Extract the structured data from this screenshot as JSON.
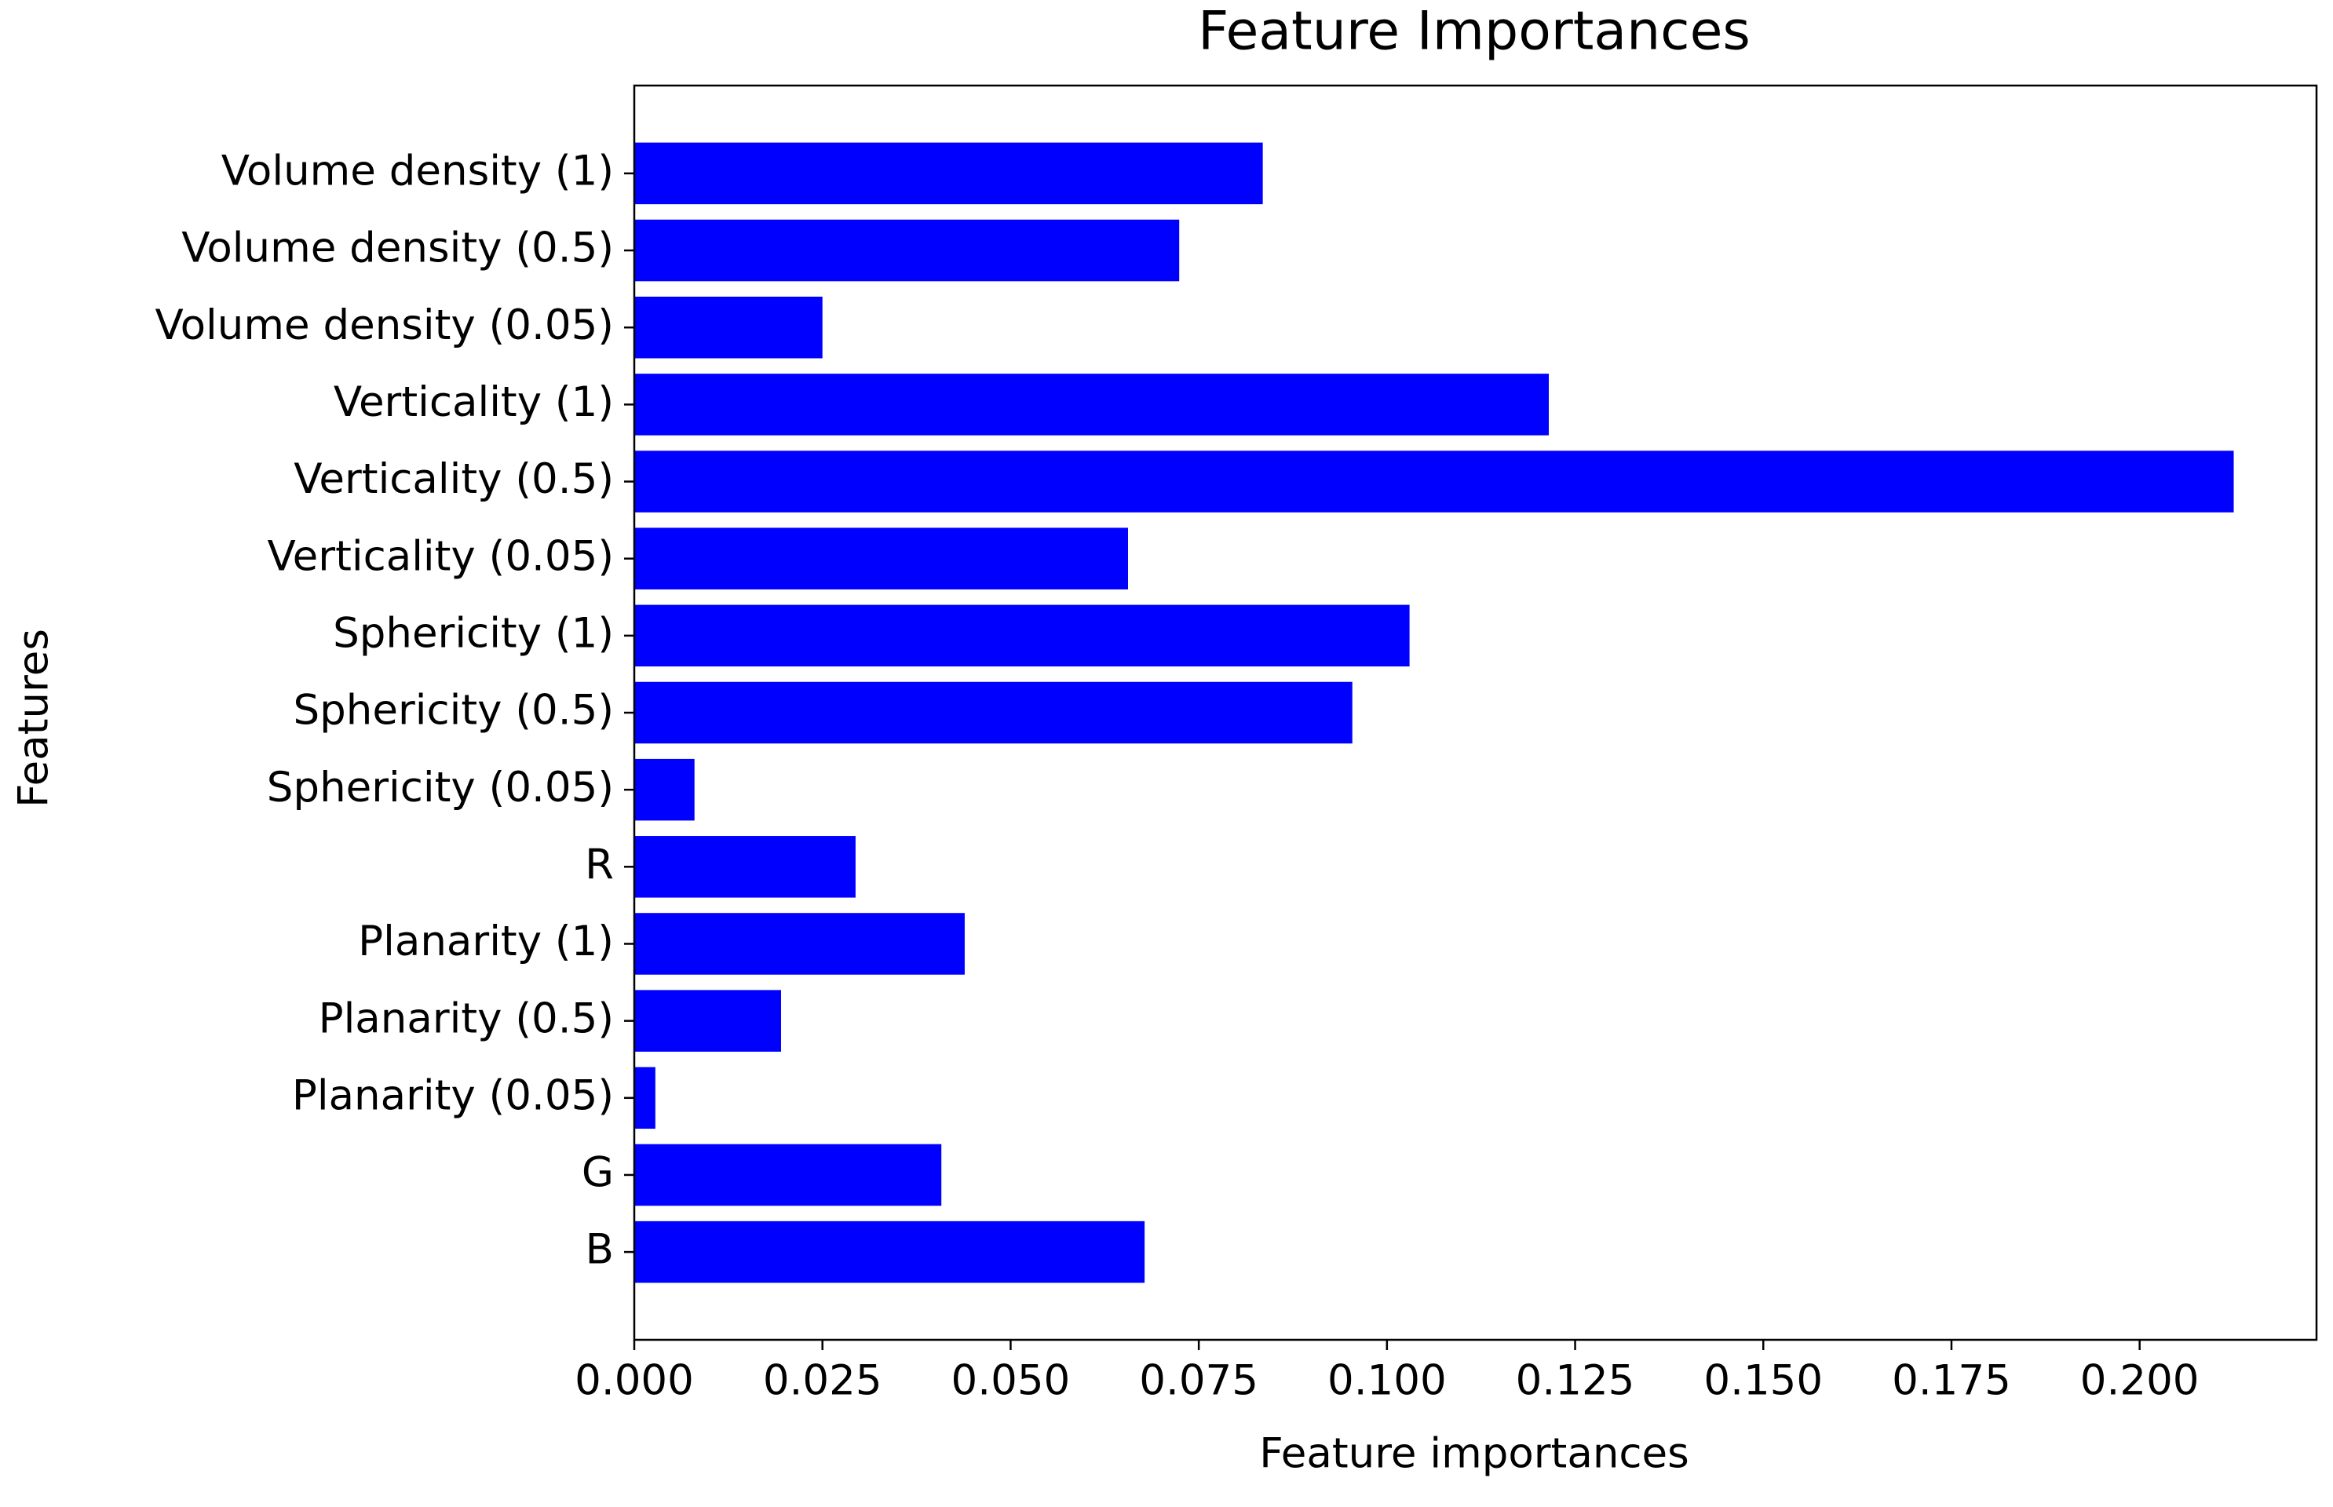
{
  "chart_data": {
    "type": "barh",
    "title": "Feature Importances",
    "x_label": "Feature importances",
    "y_label": "Features",
    "categories": [
      "Volume density (1)",
      "Volume density (0.5)",
      "Volume density (0.05)",
      "Verticality (1)",
      "Verticality (0.5)",
      "Verticality (0.05)",
      "Sphericity (1)",
      "Sphericity (0.5)",
      "Sphericity (0.05)",
      "R",
      "Planarity (1)",
      "Planarity (0.5)",
      "Planarity (0.05)",
      "G",
      "B"
    ],
    "values": [
      0.0835,
      0.0724,
      0.025,
      0.1215,
      0.2125,
      0.0656,
      0.103,
      0.0954,
      0.008,
      0.0294,
      0.0439,
      0.0195,
      0.0028,
      0.0408,
      0.0678
    ],
    "color": "#0000ff",
    "xlim": [
      0,
      0.2235
    ],
    "xticks": [
      {
        "value": 0,
        "label": "0.000"
      },
      {
        "value": 0.025,
        "label": "0.025"
      },
      {
        "value": 0.05,
        "label": "0.050"
      },
      {
        "value": 0.075,
        "label": "0.075"
      },
      {
        "value": 0.1,
        "label": "0.100"
      },
      {
        "value": 0.125,
        "label": "0.125"
      },
      {
        "value": 0.15,
        "label": "0.150"
      },
      {
        "value": 0.175,
        "label": "0.175"
      },
      {
        "value": 0.2,
        "label": "0.200"
      }
    ],
    "grid": false
  }
}
